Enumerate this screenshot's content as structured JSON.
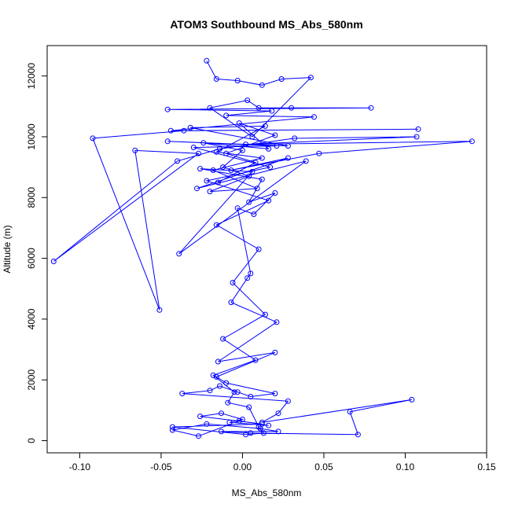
{
  "chart_data": {
    "type": "line",
    "title": "ATOM3 Southbound MS_Abs_580nm",
    "xlabel": "MS_Abs_580nm",
    "ylabel": "Altitude (m)",
    "xlim": [
      -0.12,
      0.15
    ],
    "ylim": [
      -400,
      13000
    ],
    "xticks": [
      -0.1,
      -0.05,
      0.0,
      0.05,
      0.1,
      0.15
    ],
    "xtick_labels": [
      "-0.10",
      "-0.05",
      "0.00",
      "0.05",
      "0.10",
      "0.15"
    ],
    "yticks": [
      0,
      2000,
      4000,
      6000,
      8000,
      10000,
      12000
    ],
    "ytick_labels": [
      "0",
      "2000",
      "4000",
      "6000",
      "8000",
      "10000",
      "12000"
    ],
    "grid": false,
    "legend": "none",
    "series": [
      {
        "color": "#0000ff",
        "marker": "open-circle",
        "connected": true,
        "points": [
          [
            -0.022,
            12500
          ],
          [
            -0.016,
            11900
          ],
          [
            -0.003,
            11850
          ],
          [
            0.012,
            11700
          ],
          [
            0.024,
            11900
          ],
          [
            0.042,
            11950
          ],
          [
            0.006,
            10000
          ],
          [
            -0.02,
            10950
          ],
          [
            0.003,
            11200
          ],
          [
            0.01,
            10950
          ],
          [
            0.03,
            10950
          ],
          [
            0.079,
            10950
          ],
          [
            -0.046,
            10900
          ],
          [
            0.018,
            10850
          ],
          [
            -0.01,
            10700
          ],
          [
            0.044,
            10650
          ],
          [
            -0.044,
            10200
          ],
          [
            0.108,
            10250
          ],
          [
            -0.036,
            10200
          ],
          [
            -0.092,
            9950
          ],
          [
            -0.051,
            4300
          ],
          [
            -0.066,
            9550
          ],
          [
            -0.027,
            9450
          ],
          [
            -0.116,
            5900
          ],
          [
            -0.04,
            9200
          ],
          [
            -0.014,
            9600
          ],
          [
            0.032,
            9950
          ],
          [
            0.107,
            10000
          ],
          [
            0.002,
            9750
          ],
          [
            0.141,
            9850
          ],
          [
            0.047,
            9450
          ],
          [
            -0.007,
            8900
          ],
          [
            0.028,
            9300
          ],
          [
            -0.028,
            8300
          ],
          [
            0.039,
            9200
          ],
          [
            -0.039,
            6150
          ],
          [
            0.006,
            8850
          ],
          [
            -0.026,
            8950
          ],
          [
            0.012,
            8600
          ],
          [
            0.004,
            7850
          ],
          [
            0.02,
            8150
          ],
          [
            0.007,
            7450
          ],
          [
            -0.003,
            7650
          ],
          [
            0.005,
            5500
          ],
          [
            0.003,
            5350
          ],
          [
            -0.007,
            4550
          ],
          [
            0.021,
            3900
          ],
          [
            -0.015,
            2600
          ],
          [
            0.02,
            2900
          ],
          [
            -0.016,
            2100
          ],
          [
            -0.01,
            1900
          ],
          [
            0.02,
            1550
          ],
          [
            0.005,
            1450
          ],
          [
            -0.003,
            1600
          ],
          [
            -0.014,
            1800
          ],
          [
            -0.02,
            1650
          ],
          [
            -0.037,
            1550
          ],
          [
            0.028,
            1300
          ],
          [
            0.022,
            900
          ],
          [
            0.012,
            600
          ],
          [
            0.104,
            1350
          ],
          [
            0.066,
            950
          ],
          [
            0.071,
            200
          ],
          [
            0.005,
            250
          ],
          [
            -0.013,
            300
          ],
          [
            0.022,
            300
          ],
          [
            0.011,
            400
          ],
          [
            -0.022,
            550
          ],
          [
            -0.043,
            350
          ],
          [
            -0.027,
            150
          ],
          [
            -0.002,
            650
          ],
          [
            0.016,
            500
          ],
          [
            -0.008,
            600
          ],
          [
            0.0,
            700
          ],
          [
            -0.013,
            900
          ],
          [
            -0.026,
            800
          ],
          [
            0.012,
            550
          ],
          [
            -0.043,
            450
          ],
          [
            0.002,
            200
          ],
          [
            0.013,
            250
          ],
          [
            0.01,
            450
          ],
          [
            0.004,
            1100
          ],
          [
            -0.009,
            1250
          ],
          [
            -0.005,
            1600
          ],
          [
            -0.018,
            2150
          ],
          [
            0.008,
            2650
          ],
          [
            -0.012,
            3350
          ],
          [
            0.014,
            4150
          ],
          [
            -0.006,
            5200
          ],
          [
            0.01,
            6300
          ],
          [
            -0.016,
            7100
          ],
          [
            0.016,
            7900
          ],
          [
            -0.022,
            8550
          ],
          [
            0.017,
            9000
          ],
          [
            -0.03,
            9650
          ],
          [
            0.021,
            9700
          ],
          [
            -0.046,
            9850
          ],
          [
            0.028,
            9700
          ],
          [
            -0.032,
            10300
          ],
          [
            0.014,
            10350
          ],
          [
            -0.016,
            9500
          ],
          [
            0.012,
            9300
          ],
          [
            -0.018,
            8900
          ],
          [
            0.009,
            8300
          ],
          [
            -0.02,
            8200
          ],
          [
            0.004,
            8700
          ],
          [
            -0.012,
            9000
          ],
          [
            0.0,
            9550
          ],
          [
            -0.024,
            9800
          ],
          [
            0.016,
            9600
          ],
          [
            -0.002,
            10450
          ],
          [
            0.02,
            10050
          ],
          [
            -0.01,
            9450
          ],
          [
            0.008,
            9150
          ],
          [
            -0.015,
            8500
          ]
        ]
      }
    ]
  }
}
